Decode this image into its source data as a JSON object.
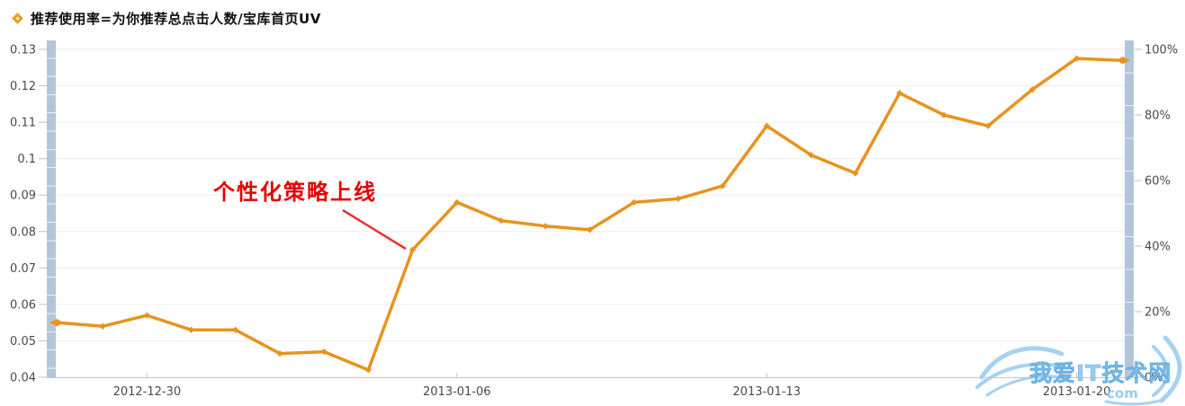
{
  "legend": {
    "label": "推荐使用率=为你推荐总点击人数/宝库首页UV",
    "marker_color": "#EE9B23"
  },
  "annotation": {
    "text": "个性化策略上线",
    "color": "#E60000"
  },
  "watermark": {
    "title": "我爱IT技术网",
    "subtitle": "com"
  },
  "colors": {
    "line": "#E8931F",
    "band": "#B2C6DA",
    "grid": "#EDEDED",
    "axis_line": "#C9C9C9",
    "tick": "#BFBFBF",
    "axis_text": "#4A4A4A",
    "annotation_red": "#E63333",
    "watermark_blue": "#90C8F0"
  },
  "chart_data": {
    "type": "line",
    "title": "",
    "xlabel": "",
    "ylabel": "",
    "x": [
      "2012-12-28",
      "2012-12-29",
      "2012-12-30",
      "2012-12-31",
      "2013-01-01",
      "2013-01-02",
      "2013-01-03",
      "2013-01-04",
      "2013-01-05",
      "2013-01-06",
      "2013-01-07",
      "2013-01-08",
      "2013-01-09",
      "2013-01-10",
      "2013-01-11",
      "2013-01-12",
      "2013-01-13",
      "2013-01-14",
      "2013-01-15",
      "2013-01-16",
      "2013-01-17",
      "2013-01-18",
      "2013-01-19",
      "2013-01-20",
      "2013-01-21"
    ],
    "series": [
      {
        "name": "推荐使用率=为你推荐总点击人数/宝库首页UV",
        "values": [
          0.055,
          0.054,
          0.057,
          0.053,
          0.053,
          0.0465,
          0.047,
          0.042,
          0.075,
          0.088,
          0.083,
          0.0815,
          0.0805,
          0.088,
          0.089,
          0.0925,
          0.109,
          0.101,
          0.096,
          0.118,
          0.112,
          0.109,
          0.119,
          0.1275,
          0.127
        ]
      }
    ],
    "left_axis": {
      "min": 0.04,
      "max": 0.13,
      "tick_labels": [
        "0.13",
        "0.12",
        "0.11",
        "0.1",
        "0.09",
        "0.08",
        "0.07",
        "0.06",
        "0.05",
        "0.04"
      ],
      "tick_values": [
        0.13,
        0.12,
        0.11,
        0.1,
        0.09,
        0.08,
        0.07,
        0.06,
        0.05,
        0.04
      ]
    },
    "right_axis": {
      "min": 0,
      "max": 100,
      "tick_labels": [
        "100%",
        "80%",
        "60%",
        "40%",
        "20%",
        "0%"
      ],
      "tick_values": [
        100,
        80,
        60,
        40,
        20,
        0
      ]
    },
    "x_axis": {
      "labels": [
        {
          "label": "2012-12-30",
          "index": 2
        },
        {
          "label": "2013-01-06",
          "index": 9
        },
        {
          "label": "2013-01-13",
          "index": 16
        },
        {
          "label": "2013-01-20",
          "index": 23
        }
      ]
    },
    "grid": true,
    "legend_position": "top-left",
    "annotation_text": "个性化策略上线"
  }
}
